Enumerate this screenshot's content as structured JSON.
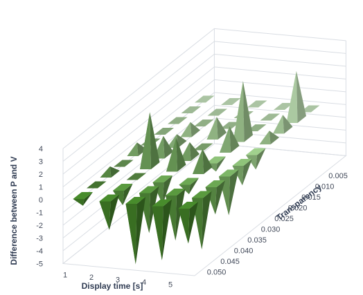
{
  "chart_data": {
    "type": "3d-pyramid",
    "xlabel": "Display time [s]",
    "ylabel": "Difference between P and V",
    "zlabel": "Transparency",
    "x_categories": [
      "1",
      "2",
      "3",
      "4",
      "5"
    ],
    "z_categories": [
      "0.005",
      "0.010",
      "0.015",
      "0.020",
      "0.025",
      "0.030",
      "0.035",
      "0.040",
      "0.045",
      "0.050"
    ],
    "y_ticks": [
      "4",
      "3",
      "2",
      "1",
      "0",
      "-1",
      "-2",
      "-3",
      "-4",
      "-5"
    ],
    "ylim": [
      -5,
      4
    ],
    "grid": true,
    "colors": {
      "near": "#3f7a26",
      "far": "#c9e6c0"
    },
    "series": [
      {
        "z": "0.005",
        "values": [
          0,
          0,
          0,
          0,
          0
        ]
      },
      {
        "z": "0.010",
        "values": [
          0,
          0,
          0,
          0,
          3.8
        ]
      },
      {
        "z": "0.015",
        "values": [
          0,
          0,
          0,
          0,
          1.2
        ]
      },
      {
        "z": "0.020",
        "values": [
          0,
          0.9,
          1.5,
          4.5,
          0.8
        ]
      },
      {
        "z": "0.025",
        "values": [
          0,
          0.8,
          0,
          1.8,
          -1.4
        ]
      },
      {
        "z": "0.030",
        "values": [
          0.8,
          1.5,
          1.2,
          -0.9,
          -1.8
        ]
      },
      {
        "z": "0.035",
        "values": [
          0,
          4.2,
          2.4,
          1.7,
          -3.3
        ]
      },
      {
        "z": "0.040",
        "values": [
          0.6,
          0,
          -2.0,
          -1.0,
          -2.4
        ]
      },
      {
        "z": "0.045",
        "values": [
          0,
          -1.4,
          -3.4,
          -3.8,
          -4.3
        ]
      },
      {
        "z": "0.050",
        "values": [
          -0.8,
          -2.5,
          -5.0,
          -4.5,
          -3.0
        ]
      }
    ]
  }
}
